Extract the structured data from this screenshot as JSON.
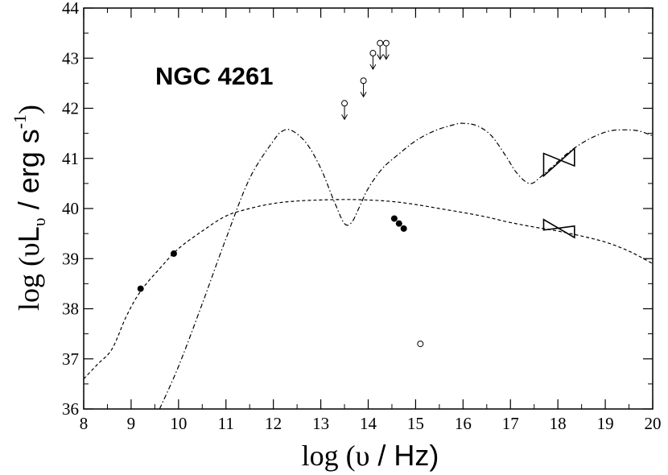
{
  "chart_data": {
    "type": "scatter",
    "title": "",
    "annotation": "NGC 4261",
    "xlabel": {
      "prefix": "log  (",
      "symbol": "υ",
      "suffix": "  / Hz)"
    },
    "ylabel": {
      "prefix": "log  (",
      "symbol": "υ",
      "main": "L",
      "sub": "υ",
      "unit": "  / erg s",
      "exp": "-1",
      "close": ")"
    },
    "xlim": [
      8,
      20
    ],
    "ylim": [
      36,
      44
    ],
    "xticks": [
      8,
      9,
      10,
      11,
      12,
      13,
      14,
      15,
      16,
      17,
      18,
      19,
      20
    ],
    "yticks": [
      36,
      37,
      38,
      39,
      40,
      41,
      42,
      43,
      44
    ],
    "grid": false,
    "series": [
      {
        "style": "filled-circle",
        "x": [
          9.2,
          9.9,
          14.55,
          14.65,
          14.75
        ],
        "y": [
          38.4,
          39.1,
          39.8,
          39.7,
          39.6
        ]
      },
      {
        "style": "open-circle",
        "x": [
          15.1
        ],
        "y": [
          37.3
        ]
      },
      {
        "style": "upper-limit",
        "x": [
          13.5,
          13.9,
          14.1,
          14.25,
          14.38
        ],
        "y": [
          42.1,
          42.55,
          43.1,
          43.3,
          43.3
        ]
      },
      {
        "style": "dashed-line",
        "x": [
          8.0,
          8.3,
          8.6,
          8.9,
          9.2,
          9.6,
          10.0,
          10.5,
          11.0,
          11.5,
          12.0,
          12.5,
          13.0,
          13.5,
          14.0,
          14.5,
          15.0,
          15.5,
          16.0,
          16.5,
          17.0,
          17.5,
          18.0,
          18.5,
          19.0,
          19.5,
          20.0
        ],
        "y": [
          36.6,
          36.9,
          37.2,
          37.85,
          38.35,
          38.8,
          39.2,
          39.55,
          39.85,
          40.0,
          40.1,
          40.15,
          40.17,
          40.18,
          40.17,
          40.14,
          40.08,
          40.0,
          39.92,
          39.83,
          39.72,
          39.63,
          39.55,
          39.45,
          39.33,
          39.15,
          38.9
        ]
      },
      {
        "style": "dash-dot-line",
        "x": [
          9.6,
          10.0,
          10.5,
          11.0,
          11.5,
          12.0,
          12.2,
          12.4,
          12.7,
          13.0,
          13.3,
          13.5,
          13.65,
          13.8,
          14.0,
          14.3,
          14.6,
          15.0,
          15.4,
          15.8,
          16.0,
          16.3,
          16.6,
          16.9,
          17.1,
          17.3,
          17.45,
          17.6,
          17.9,
          18.2,
          18.5,
          18.8,
          19.1,
          19.4,
          19.7,
          20.0
        ],
        "y": [
          36.0,
          36.85,
          38.1,
          39.4,
          40.6,
          41.35,
          41.55,
          41.55,
          41.3,
          40.8,
          40.1,
          39.7,
          39.72,
          40.0,
          40.4,
          40.8,
          41.05,
          41.35,
          41.55,
          41.67,
          41.7,
          41.65,
          41.45,
          41.05,
          40.75,
          40.55,
          40.5,
          40.6,
          40.85,
          41.1,
          41.3,
          41.45,
          41.55,
          41.57,
          41.55,
          41.45
        ]
      }
    ],
    "bowties": [
      {
        "x": [
          17.7,
          18.35
        ],
        "y_low": [
          40.65,
          40.85
        ],
        "y_high": [
          41.1,
          41.2
        ]
      },
      {
        "x": [
          17.7,
          18.35
        ],
        "y_low": [
          39.57,
          39.42
        ],
        "y_high": [
          39.78,
          39.65
        ]
      }
    ]
  }
}
